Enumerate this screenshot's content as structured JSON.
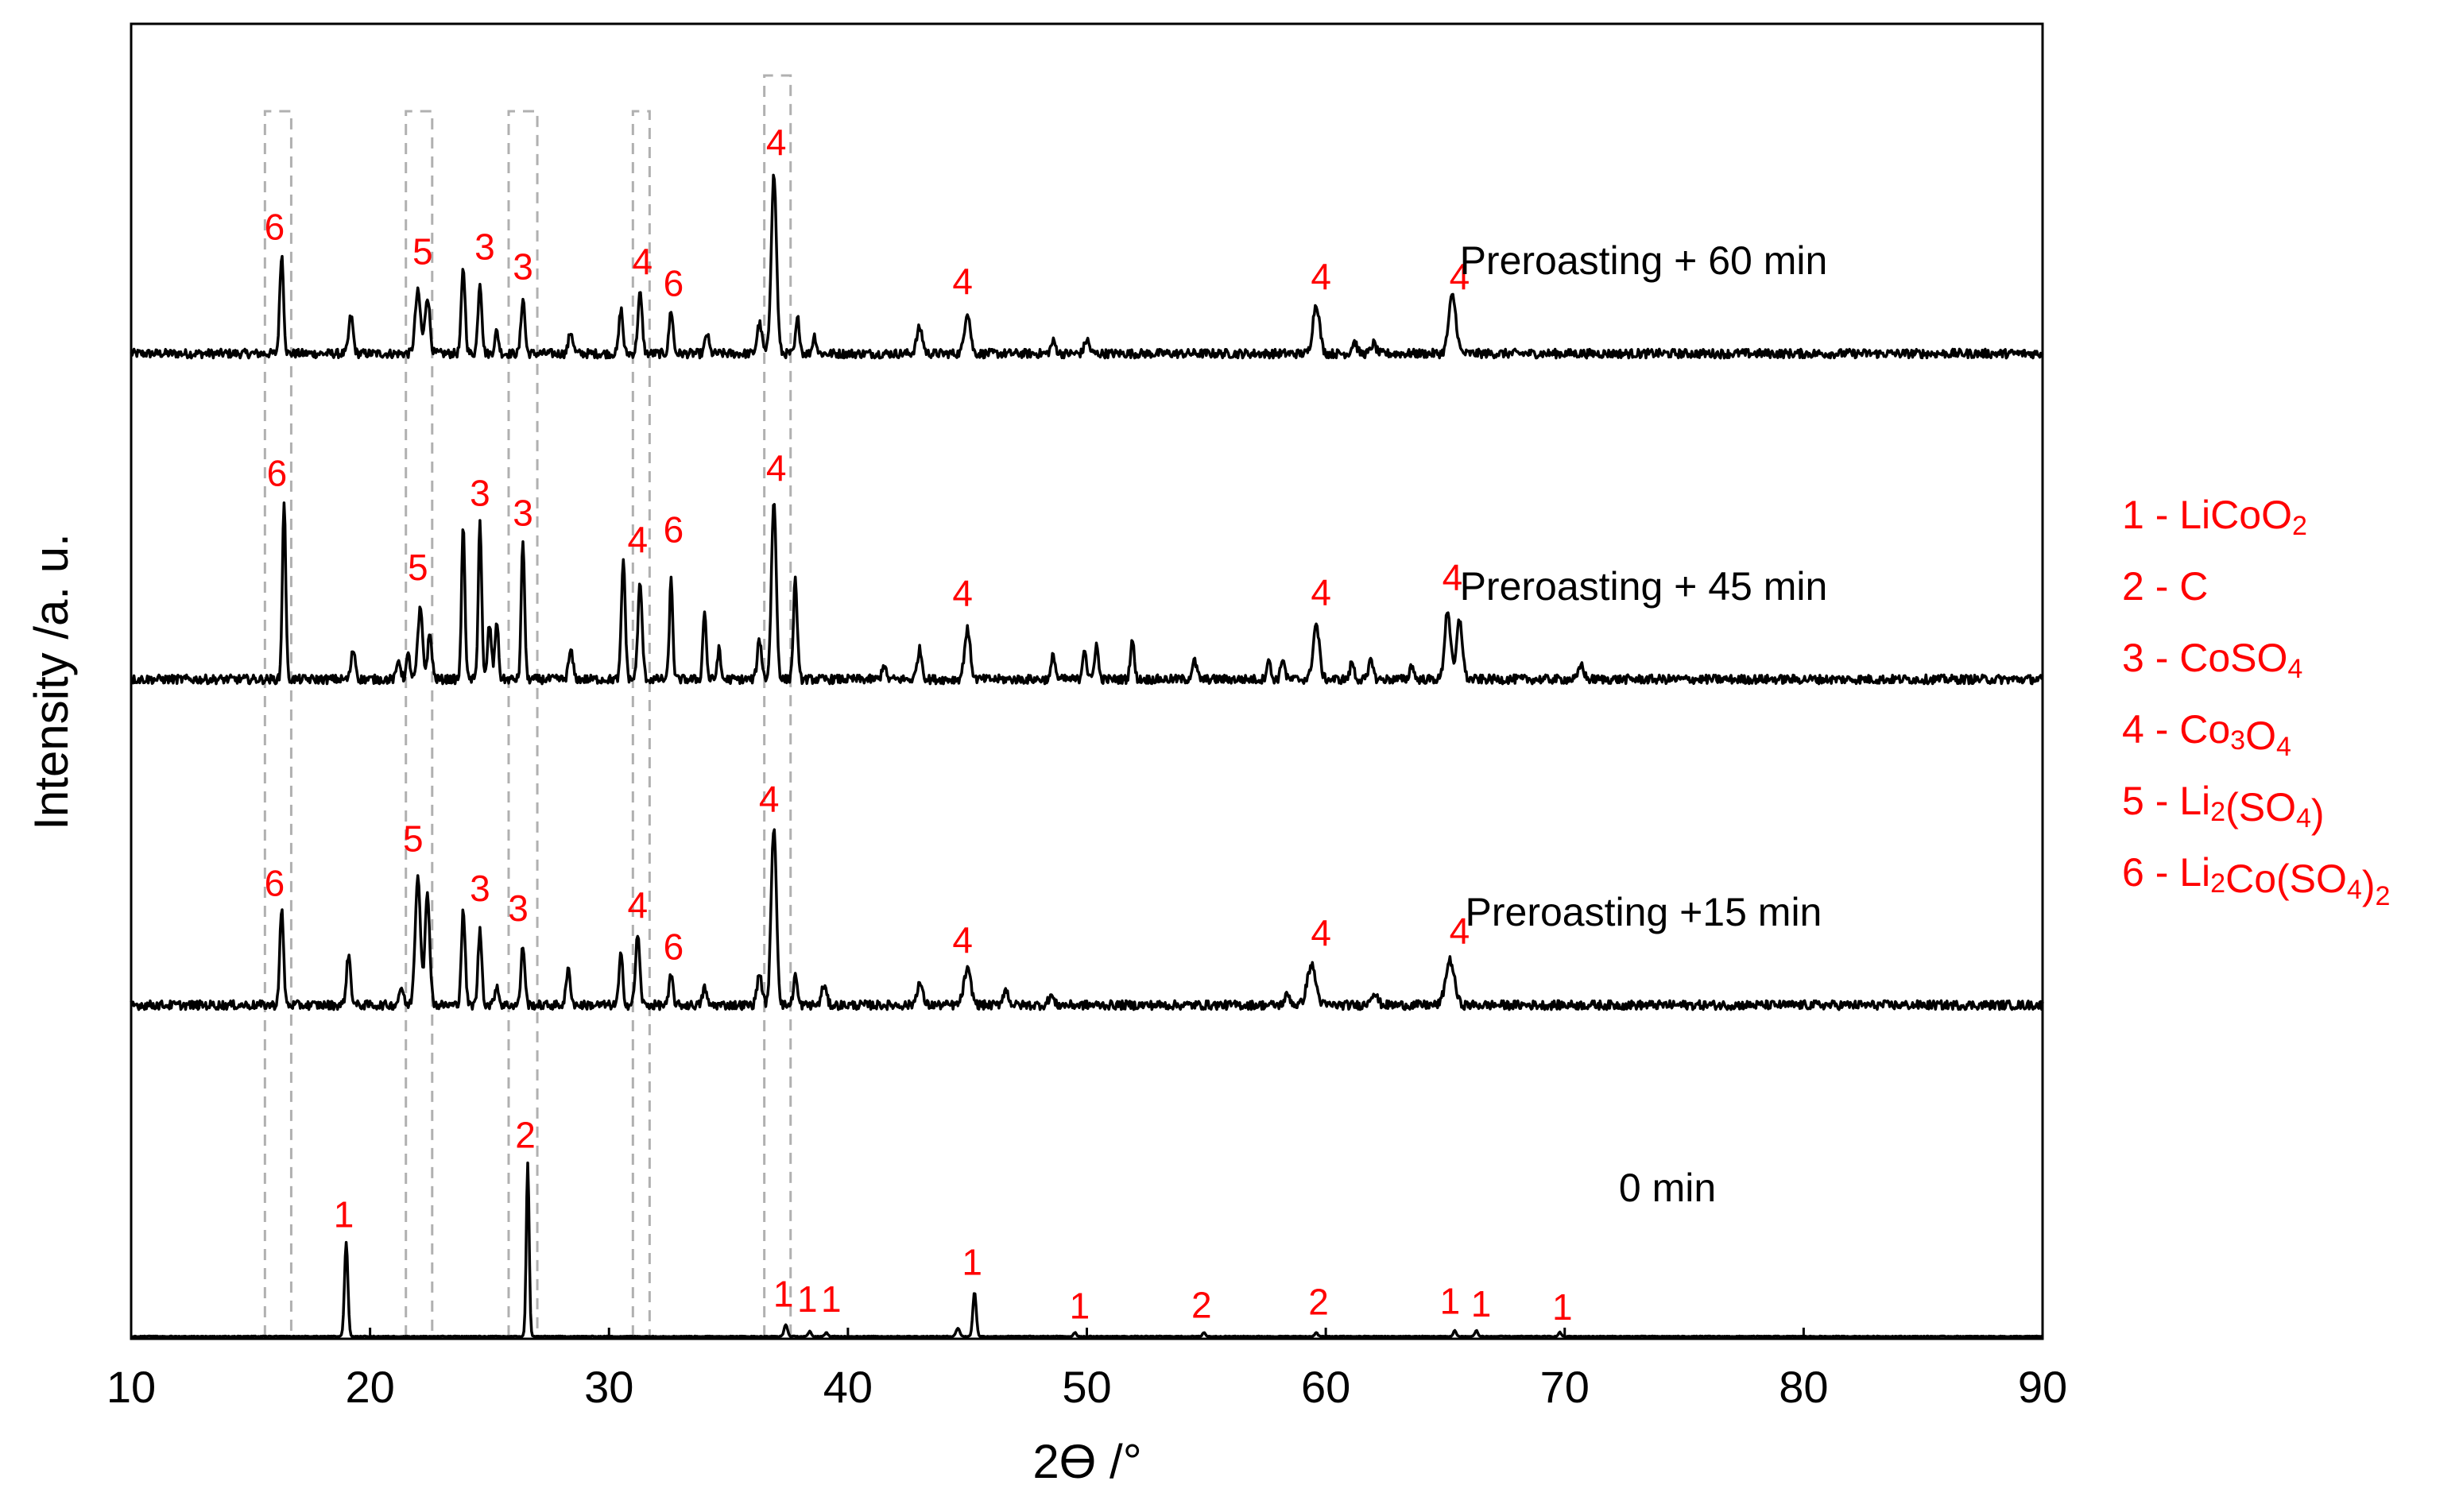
{
  "chart_data": {
    "type": "line",
    "title": "",
    "xlabel": "2ϴ /°",
    "ylabel": "Intensity /a. u.",
    "xlim": [
      10,
      90
    ],
    "x_ticks": [
      "10",
      "20",
      "30",
      "40",
      "50",
      "60",
      "70",
      "80",
      "90"
    ],
    "y_ticks": [],
    "grid": false,
    "colors": {
      "trace": "#000000",
      "annotation": "#ff0000",
      "guide": "#b0b0b0"
    },
    "legend_position": "right",
    "legend": [
      {
        "prefix": "1 - ",
        "parts": [
          [
            "LiCoO",
            false
          ],
          [
            "2",
            true
          ]
        ]
      },
      {
        "prefix": "2 - ",
        "parts": [
          [
            "C",
            false
          ]
        ]
      },
      {
        "prefix": "3 - ",
        "parts": [
          [
            "CoSO",
            false
          ],
          [
            "4",
            true
          ]
        ]
      },
      {
        "prefix": "4 - ",
        "parts": [
          [
            "Co",
            false
          ],
          [
            "3",
            true
          ],
          [
            "O",
            false
          ],
          [
            "4",
            true
          ]
        ]
      },
      {
        "prefix": "5 - ",
        "parts": [
          [
            "Li",
            false
          ],
          [
            "2",
            true
          ],
          [
            "(SO",
            false
          ],
          [
            "4",
            true
          ],
          [
            ")",
            false
          ]
        ]
      },
      {
        "prefix": "6 - ",
        "parts": [
          [
            "Li",
            false
          ],
          [
            "2",
            true
          ],
          [
            "Co(SO",
            false
          ],
          [
            "4",
            true
          ],
          [
            ")",
            false
          ],
          [
            "2",
            true
          ]
        ]
      }
    ],
    "guide_bands": [
      [
        15.6,
        16.7
      ],
      [
        21.5,
        22.6
      ],
      [
        25.8,
        27.0
      ],
      [
        31.0,
        31.7
      ],
      [
        36.5,
        37.6
      ]
    ],
    "series": [
      {
        "name": "Preroasting + 60 min",
        "noise": 0.045,
        "peaks": [
          [
            16.3,
            1.0,
            0.08
          ],
          [
            19.2,
            0.38,
            0.09
          ],
          [
            22.0,
            0.62,
            0.11
          ],
          [
            22.4,
            0.58,
            0.1
          ],
          [
            23.9,
            0.85,
            0.08
          ],
          [
            24.6,
            0.72,
            0.08
          ],
          [
            25.3,
            0.22,
            0.08
          ],
          [
            26.4,
            0.56,
            0.08
          ],
          [
            28.4,
            0.22,
            0.09
          ],
          [
            30.5,
            0.45,
            0.08
          ],
          [
            31.3,
            0.6,
            0.09
          ],
          [
            32.6,
            0.44,
            0.08
          ],
          [
            34.1,
            0.2,
            0.08
          ],
          [
            36.3,
            0.3,
            0.1
          ],
          [
            36.9,
            1.8,
            0.11
          ],
          [
            37.9,
            0.35,
            0.08
          ],
          [
            38.6,
            0.18,
            0.08
          ],
          [
            43.0,
            0.26,
            0.12
          ],
          [
            45.0,
            0.42,
            0.12
          ],
          [
            48.6,
            0.12,
            0.1
          ],
          [
            50.0,
            0.14,
            0.1
          ],
          [
            59.6,
            0.5,
            0.14
          ],
          [
            61.2,
            0.12,
            0.1
          ],
          [
            62.0,
            0.1,
            0.1
          ],
          [
            65.3,
            0.58,
            0.15
          ]
        ],
        "label": {
          "text": "Preroasting + 60 min",
          "x": 73.3
        },
        "annotations": [
          {
            "text": "6",
            "x": 16.0,
            "h": 1.15
          },
          {
            "text": "5",
            "x": 22.2,
            "h": 0.9
          },
          {
            "text": "3",
            "x": 24.8,
            "h": 0.95
          },
          {
            "text": "3",
            "x": 26.4,
            "h": 0.75
          },
          {
            "text": "4",
            "x": 31.4,
            "h": 0.8
          },
          {
            "text": "6",
            "x": 32.7,
            "h": 0.58
          },
          {
            "text": "4",
            "x": 37.0,
            "h": 2.0
          },
          {
            "text": "4",
            "x": 44.8,
            "h": 0.6
          },
          {
            "text": "4",
            "x": 59.8,
            "h": 0.65
          },
          {
            "text": "4",
            "x": 65.6,
            "h": 0.65
          }
        ]
      },
      {
        "name": "Preroasting + 45 min",
        "noise": 0.045,
        "peaks": [
          [
            16.4,
            1.8,
            0.07
          ],
          [
            19.3,
            0.3,
            0.09
          ],
          [
            21.2,
            0.2,
            0.08
          ],
          [
            21.6,
            0.24,
            0.08
          ],
          [
            22.1,
            0.7,
            0.1
          ],
          [
            22.5,
            0.45,
            0.09
          ],
          [
            23.9,
            1.55,
            0.07
          ],
          [
            24.6,
            1.6,
            0.07
          ],
          [
            25.0,
            0.55,
            0.08
          ],
          [
            25.3,
            0.6,
            0.07
          ],
          [
            26.4,
            1.4,
            0.07
          ],
          [
            28.4,
            0.28,
            0.09
          ],
          [
            30.6,
            1.2,
            0.08
          ],
          [
            31.3,
            0.95,
            0.09
          ],
          [
            32.6,
            1.0,
            0.07
          ],
          [
            34.0,
            0.7,
            0.07
          ],
          [
            34.6,
            0.3,
            0.07
          ],
          [
            36.3,
            0.4,
            0.09
          ],
          [
            36.9,
            1.8,
            0.1
          ],
          [
            37.8,
            1.0,
            0.08
          ],
          [
            41.5,
            0.15,
            0.08
          ],
          [
            43.0,
            0.3,
            0.1
          ],
          [
            45.0,
            0.5,
            0.12
          ],
          [
            48.6,
            0.25,
            0.08
          ],
          [
            49.9,
            0.32,
            0.08
          ],
          [
            50.4,
            0.35,
            0.08
          ],
          [
            51.9,
            0.4,
            0.08
          ],
          [
            54.5,
            0.18,
            0.1
          ],
          [
            57.6,
            0.2,
            0.08
          ],
          [
            58.2,
            0.22,
            0.08
          ],
          [
            59.6,
            0.55,
            0.13
          ],
          [
            61.1,
            0.18,
            0.08
          ],
          [
            61.9,
            0.22,
            0.08
          ],
          [
            63.6,
            0.15,
            0.08
          ],
          [
            65.1,
            0.7,
            0.12
          ],
          [
            65.6,
            0.6,
            0.12
          ],
          [
            70.7,
            0.15,
            0.1
          ]
        ],
        "label": {
          "text": "Preroasting + 45 min",
          "x": 73.3
        },
        "annotations": [
          {
            "text": "6",
            "x": 16.1,
            "h": 1.95
          },
          {
            "text": "5",
            "x": 22.0,
            "h": 1.0
          },
          {
            "text": "3",
            "x": 24.6,
            "h": 1.75
          },
          {
            "text": "3",
            "x": 26.4,
            "h": 1.55
          },
          {
            "text": "4",
            "x": 31.2,
            "h": 1.28
          },
          {
            "text": "6",
            "x": 32.7,
            "h": 1.38
          },
          {
            "text": "4",
            "x": 37.0,
            "h": 2.0
          },
          {
            "text": "4",
            "x": 44.8,
            "h": 0.74
          },
          {
            "text": "4",
            "x": 59.8,
            "h": 0.75
          },
          {
            "text": "4",
            "x": 65.3,
            "h": 0.9
          }
        ]
      },
      {
        "name": "Preroasting +15 min",
        "noise": 0.045,
        "peaks": [
          [
            16.3,
            0.95,
            0.08
          ],
          [
            19.1,
            0.5,
            0.09
          ],
          [
            21.3,
            0.18,
            0.09
          ],
          [
            22.0,
            1.3,
            0.11
          ],
          [
            22.4,
            1.1,
            0.1
          ],
          [
            23.9,
            0.95,
            0.08
          ],
          [
            24.6,
            0.75,
            0.08
          ],
          [
            25.3,
            0.2,
            0.08
          ],
          [
            26.4,
            0.6,
            0.08
          ],
          [
            28.3,
            0.35,
            0.09
          ],
          [
            30.5,
            0.5,
            0.08
          ],
          [
            31.2,
            0.7,
            0.09
          ],
          [
            32.6,
            0.3,
            0.08
          ],
          [
            34.0,
            0.18,
            0.08
          ],
          [
            36.3,
            0.32,
            0.1
          ],
          [
            36.9,
            1.8,
            0.11
          ],
          [
            37.8,
            0.3,
            0.08
          ],
          [
            39.0,
            0.2,
            0.1
          ],
          [
            43.0,
            0.22,
            0.12
          ],
          [
            45.0,
            0.35,
            0.15
          ],
          [
            46.6,
            0.15,
            0.12
          ],
          [
            48.5,
            0.1,
            0.1
          ],
          [
            58.4,
            0.1,
            0.12
          ],
          [
            59.4,
            0.4,
            0.18
          ],
          [
            62.0,
            0.12,
            0.15
          ],
          [
            65.2,
            0.45,
            0.18
          ]
        ],
        "label": {
          "text": "Preroasting +15 min",
          "x": 73.3
        },
        "annotations": [
          {
            "text": "6",
            "x": 16.0,
            "h": 1.1
          },
          {
            "text": "5",
            "x": 21.8,
            "h": 1.55
          },
          {
            "text": "3",
            "x": 24.6,
            "h": 1.05
          },
          {
            "text": "3",
            "x": 26.2,
            "h": 0.85
          },
          {
            "text": "4",
            "x": 31.2,
            "h": 0.88
          },
          {
            "text": "6",
            "x": 32.7,
            "h": 0.46
          },
          {
            "text": "4",
            "x": 36.7,
            "h": 1.95
          },
          {
            "text": "4",
            "x": 44.8,
            "h": 0.53
          },
          {
            "text": "4",
            "x": 59.8,
            "h": 0.6
          },
          {
            "text": "4",
            "x": 65.6,
            "h": 0.62
          }
        ]
      },
      {
        "name": "0 min",
        "noise": 0.004,
        "peaks": [
          [
            19.0,
            0.95,
            0.07
          ],
          [
            26.6,
            1.75,
            0.06
          ],
          [
            37.4,
            0.12,
            0.07
          ],
          [
            38.4,
            0.05,
            0.06
          ],
          [
            39.1,
            0.04,
            0.06
          ],
          [
            44.6,
            0.08,
            0.08
          ],
          [
            45.3,
            0.45,
            0.07
          ],
          [
            49.5,
            0.04,
            0.06
          ],
          [
            54.9,
            0.04,
            0.06
          ],
          [
            59.6,
            0.04,
            0.06
          ],
          [
            65.4,
            0.06,
            0.06
          ],
          [
            66.3,
            0.06,
            0.06
          ],
          [
            69.8,
            0.04,
            0.06
          ]
        ],
        "label": {
          "text": "0 min",
          "x": 74.3
        },
        "annotations": [
          {
            "text": "1",
            "x": 18.9,
            "h": 1.1
          },
          {
            "text": "2",
            "x": 26.5,
            "h": 1.9
          },
          {
            "text": "1",
            "x": 37.3,
            "h": 0.3
          },
          {
            "text": "1",
            "x": 38.3,
            "h": 0.25
          },
          {
            "text": "1",
            "x": 39.3,
            "h": 0.25
          },
          {
            "text": "1",
            "x": 45.2,
            "h": 0.62
          },
          {
            "text": "1",
            "x": 49.7,
            "h": 0.18
          },
          {
            "text": "2",
            "x": 54.8,
            "h": 0.19
          },
          {
            "text": "2",
            "x": 59.7,
            "h": 0.22
          },
          {
            "text": "1",
            "x": 65.2,
            "h": 0.23
          },
          {
            "text": "1",
            "x": 66.5,
            "h": 0.2
          },
          {
            "text": "1",
            "x": 69.9,
            "h": 0.17
          }
        ]
      }
    ]
  }
}
